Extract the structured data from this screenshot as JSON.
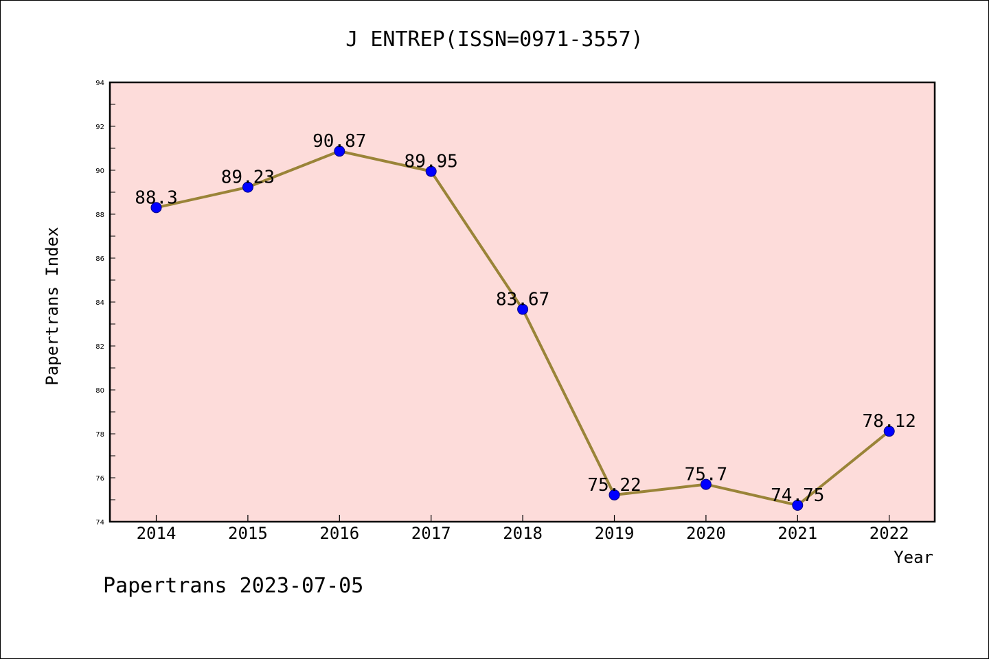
{
  "chart_data": {
    "type": "line",
    "title": "J ENTREP(ISSN=0971-3557)",
    "xlabel": "Year",
    "ylabel": "Papertrans Index",
    "categories": [
      "2014",
      "2015",
      "2016",
      "2017",
      "2018",
      "2019",
      "2020",
      "2021",
      "2022"
    ],
    "series": [
      {
        "values": [
          88.3,
          89.23,
          90.87,
          89.95,
          83.67,
          75.22,
          75.7,
          74.75,
          78.12
        ],
        "labels": [
          "88.3",
          "89.23",
          "90.87",
          "89.95",
          "83.67",
          "75.22",
          "75.7",
          "74.75",
          "78.12"
        ]
      }
    ],
    "ylim": [
      74,
      94
    ],
    "yticks": [
      74,
      76,
      78,
      80,
      82,
      84,
      86,
      88,
      90,
      92,
      94
    ],
    "grid": false,
    "legend": "none"
  },
  "footer": {
    "text": "Papertrans 2023-07-05"
  },
  "colors": {
    "plot_background": "#fddcda",
    "line": "#9a8438",
    "marker": "#0000ff",
    "axis": "#000000"
  }
}
